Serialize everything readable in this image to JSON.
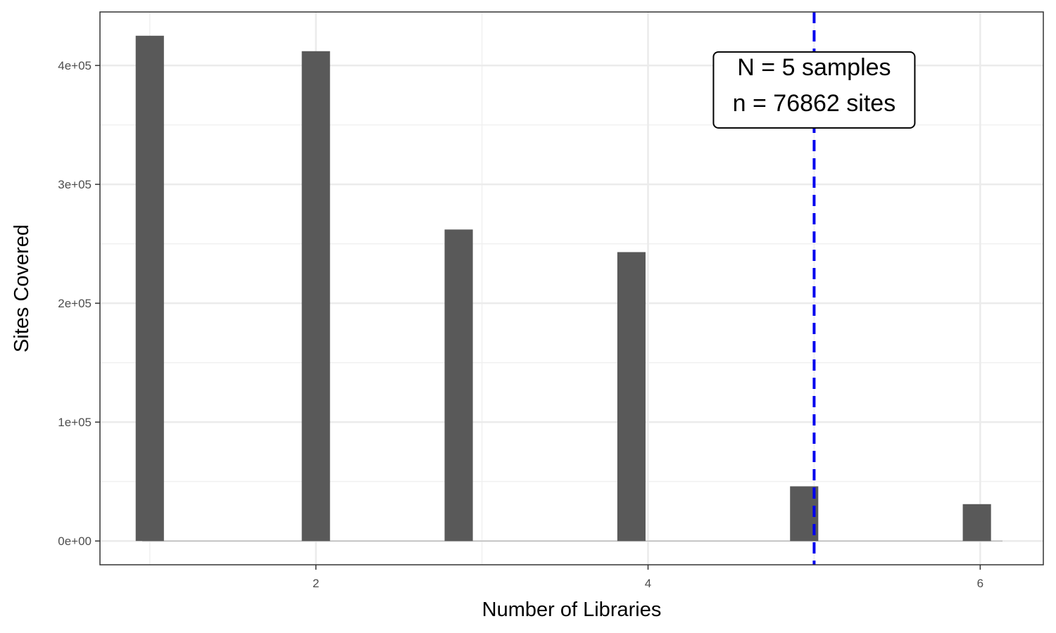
{
  "chart_data": {
    "type": "bar",
    "title": "",
    "xlabel": "Number of Libraries",
    "ylabel": "Sites Covered",
    "x": [
      1,
      2,
      2.86,
      3.9,
      4.94,
      5.98
    ],
    "values": [
      425000,
      412000,
      262000,
      243000,
      46000,
      31000
    ],
    "bar_width": 0.17,
    "xlim": [
      0.7,
      6.38
    ],
    "ylim": [
      -20000,
      445000
    ],
    "x_ticks": [
      2,
      4,
      6
    ],
    "x_tick_labels": [
      "2",
      "4",
      "6"
    ],
    "y_ticks": [
      0,
      100000,
      200000,
      300000,
      400000
    ],
    "y_tick_labels": [
      "0e+00",
      "1e+05",
      "2e+05",
      "3e+05",
      "4e+05"
    ],
    "grid": true,
    "legend": "none",
    "bar_color": "#595959",
    "reference_line": {
      "x": 5,
      "color": "#0000ee",
      "style": "dashed"
    },
    "annotation": {
      "lines": [
        "N = 5 samples",
        "n = 76862 sites"
      ],
      "x": 5,
      "y": 380000
    }
  }
}
